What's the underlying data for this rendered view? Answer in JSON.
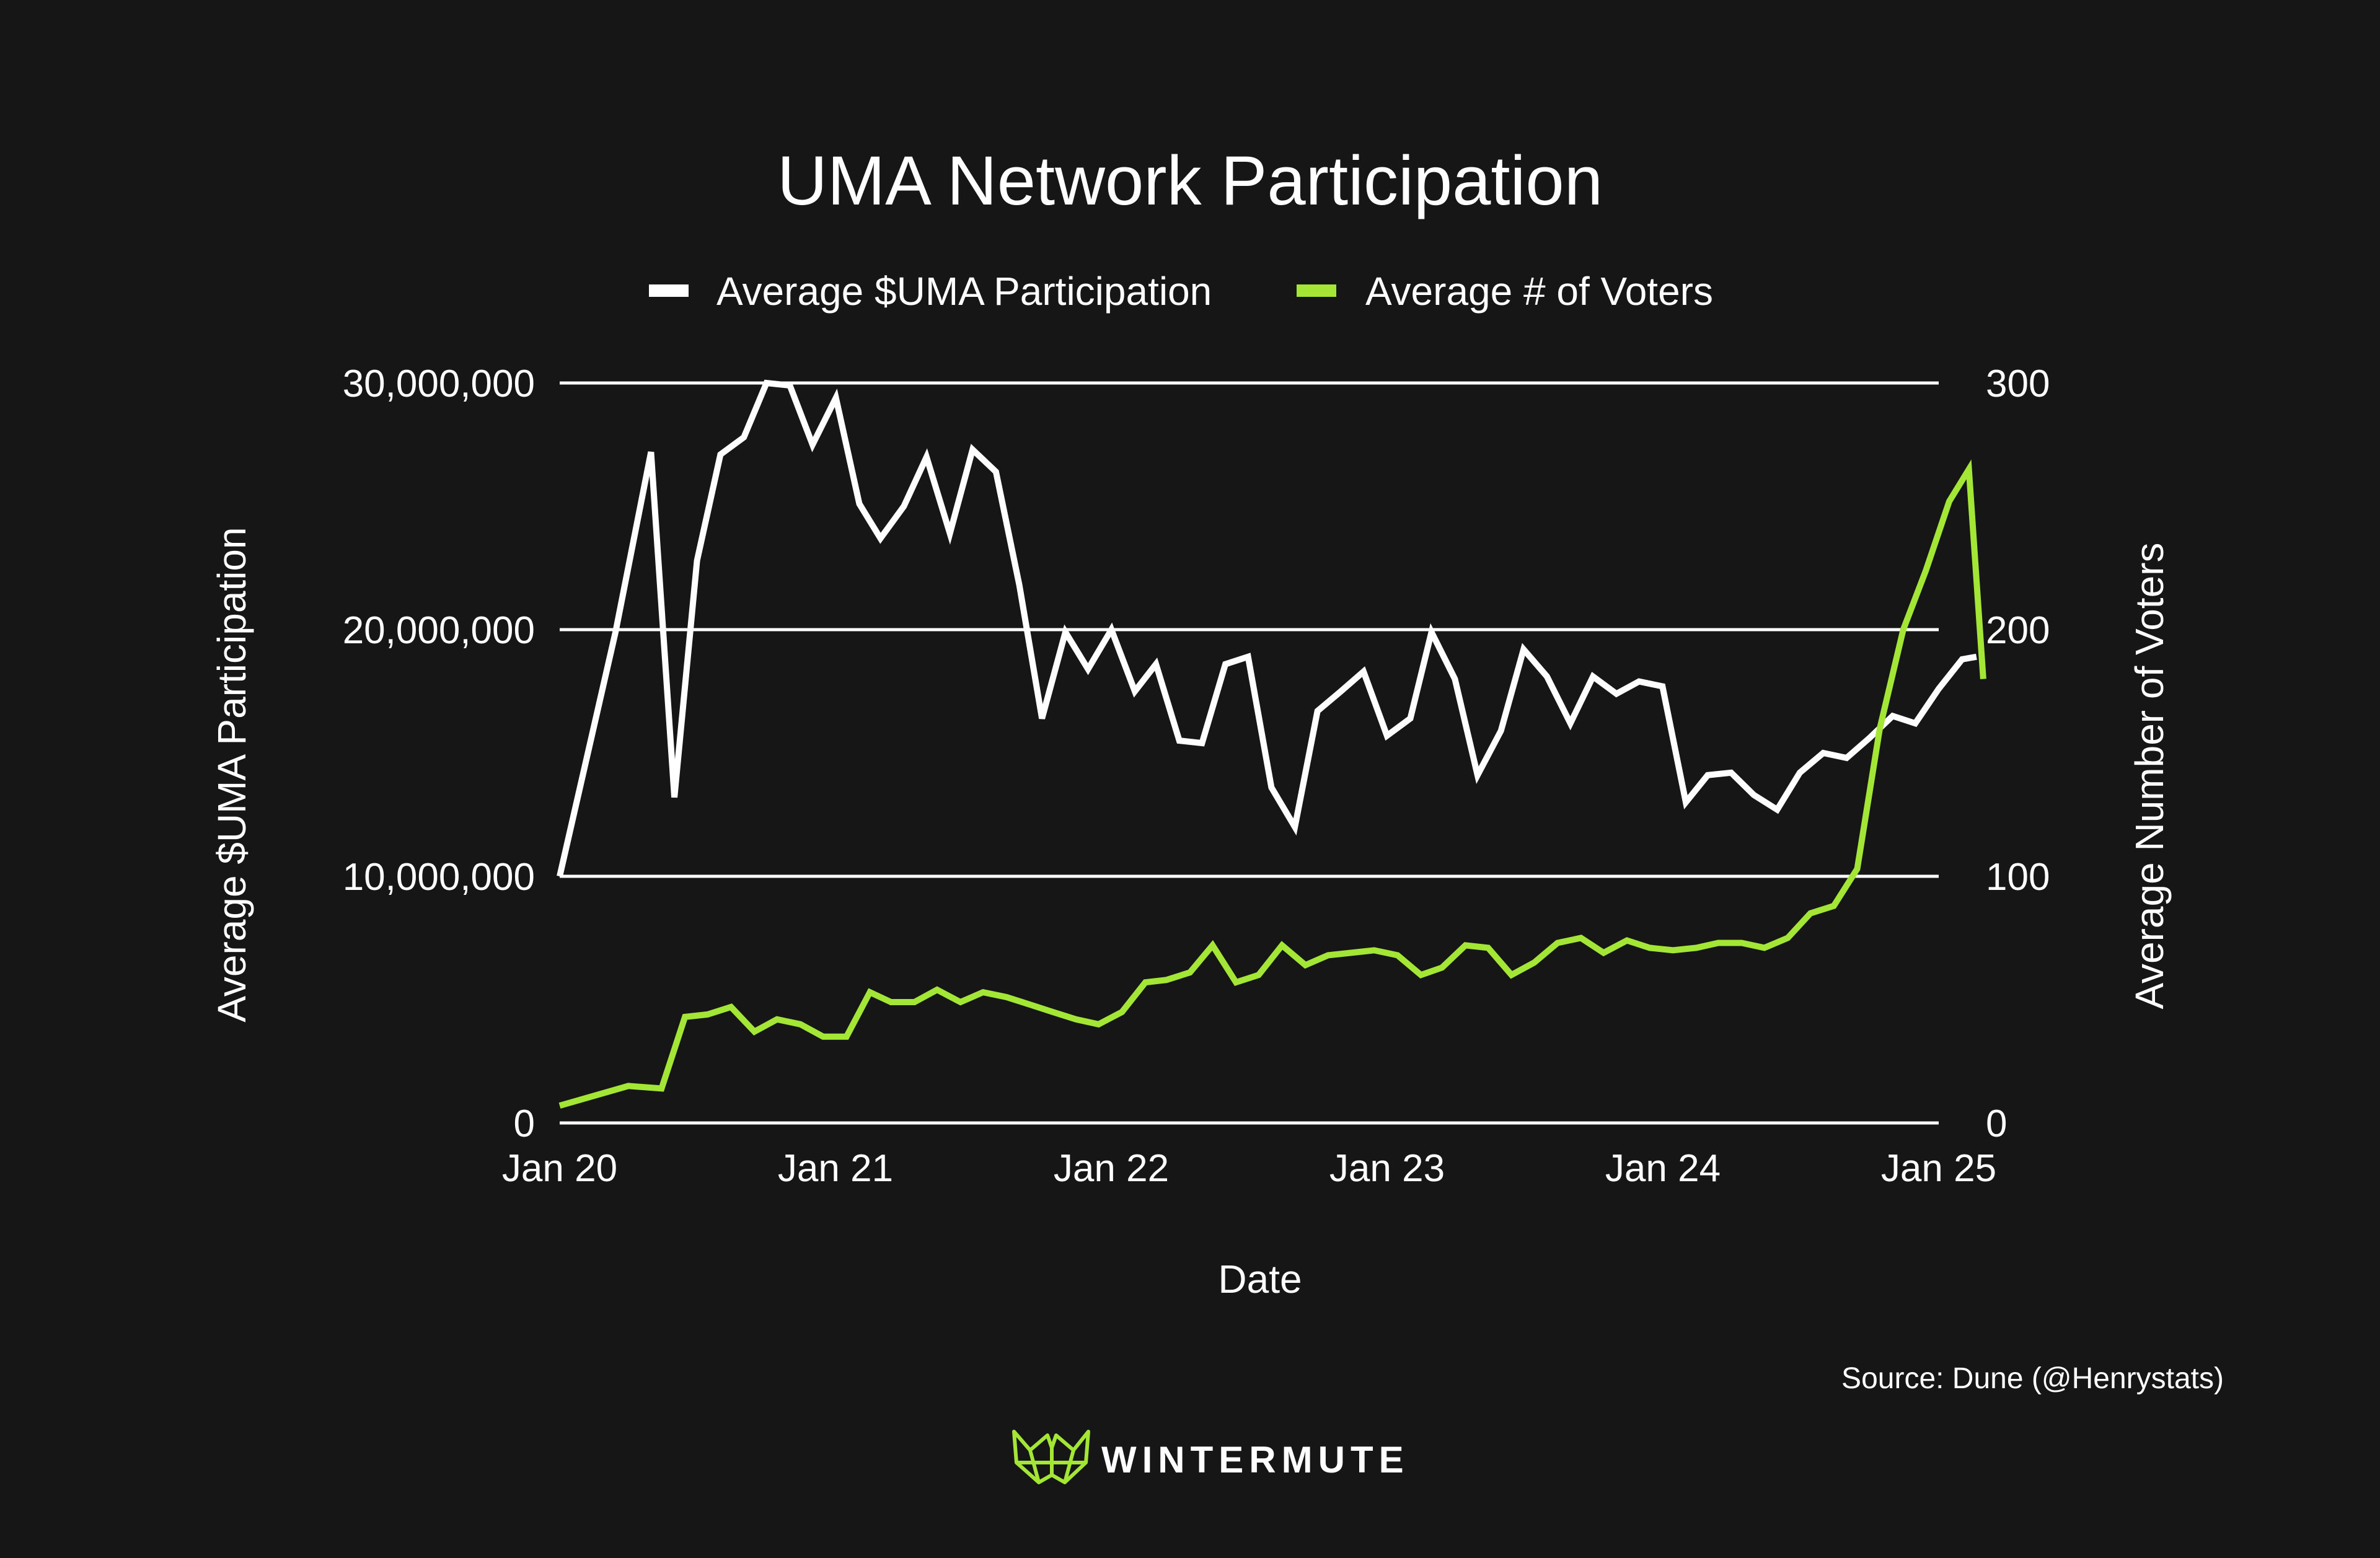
{
  "chart_data": {
    "type": "line",
    "title": "UMA Network Participation",
    "xlabel": "Date",
    "ylabel_left": "Average $UMA Participation",
    "ylabel_right": "Average Number of Voters",
    "x_ticks": [
      "Jan 20",
      "Jan 21",
      "Jan 22",
      "Jan 23",
      "Jan 24",
      "Jan 25"
    ],
    "xlim": [
      "2020-01-01",
      "2025-01-01"
    ],
    "ylim_left": [
      0,
      30000000
    ],
    "ylim_right": [
      0,
      300
    ],
    "y_ticks_left": [
      "0",
      "10,000,000",
      "20,000,000",
      "30,000,000"
    ],
    "y_ticks_right": [
      "0",
      "100",
      "200",
      "300"
    ],
    "grid": "horizontal",
    "legend_position": "top-center",
    "series": [
      {
        "name": "Average $UMA Participation",
        "axis": "left",
        "color": "#ffffff",
        "points": [
          [
            "2020-01-01",
            10000000
          ],
          [
            "2020-03-15",
            19900000
          ],
          [
            "2020-05-01",
            27200000
          ],
          [
            "2020-06-01",
            13200000
          ],
          [
            "2020-07-01",
            22800000
          ],
          [
            "2020-08-01",
            27100000
          ],
          [
            "2020-09-01",
            27800000
          ],
          [
            "2020-10-01",
            30000000
          ],
          [
            "2020-11-01",
            29900000
          ],
          [
            "2020-12-01",
            27500000
          ],
          [
            "2021-01-01",
            29400000
          ],
          [
            "2021-02-01",
            25100000
          ],
          [
            "2021-03-01",
            23700000
          ],
          [
            "2021-04-01",
            25000000
          ],
          [
            "2021-05-01",
            27000000
          ],
          [
            "2021-06-01",
            23900000
          ],
          [
            "2021-07-01",
            27300000
          ],
          [
            "2021-08-01",
            26400000
          ],
          [
            "2021-09-01",
            21800000
          ],
          [
            "2021-10-01",
            16400000
          ],
          [
            "2021-11-01",
            19900000
          ],
          [
            "2021-12-01",
            18400000
          ],
          [
            "2022-01-01",
            20000000
          ],
          [
            "2022-02-01",
            17500000
          ],
          [
            "2022-03-01",
            18600000
          ],
          [
            "2022-04-01",
            15500000
          ],
          [
            "2022-05-01",
            15400000
          ],
          [
            "2022-06-01",
            18600000
          ],
          [
            "2022-07-01",
            18900000
          ],
          [
            "2022-08-01",
            13600000
          ],
          [
            "2022-09-01",
            12000000
          ],
          [
            "2022-10-01",
            16700000
          ],
          [
            "2022-11-01",
            17500000
          ],
          [
            "2022-12-01",
            18300000
          ],
          [
            "2023-01-01",
            15700000
          ],
          [
            "2023-02-01",
            16400000
          ],
          [
            "2023-03-01",
            19900000
          ],
          [
            "2023-04-01",
            18000000
          ],
          [
            "2023-05-01",
            14100000
          ],
          [
            "2023-06-01",
            15900000
          ],
          [
            "2023-07-01",
            19200000
          ],
          [
            "2023-08-01",
            18100000
          ],
          [
            "2023-09-01",
            16200000
          ],
          [
            "2023-10-01",
            18100000
          ],
          [
            "2023-11-01",
            17400000
          ],
          [
            "2023-12-01",
            17900000
          ],
          [
            "2024-01-01",
            17700000
          ],
          [
            "2024-02-01",
            13000000
          ],
          [
            "2024-03-01",
            14100000
          ],
          [
            "2024-04-01",
            14200000
          ],
          [
            "2024-05-01",
            13300000
          ],
          [
            "2024-06-01",
            12700000
          ],
          [
            "2024-07-01",
            14200000
          ],
          [
            "2024-08-01",
            15000000
          ],
          [
            "2024-09-01",
            14800000
          ],
          [
            "2024-10-01",
            15600000
          ],
          [
            "2024-11-01",
            16500000
          ],
          [
            "2024-12-01",
            16200000
          ],
          [
            "2025-01-01",
            17600000
          ],
          [
            "2025-02-01",
            18800000
          ],
          [
            "2025-02-20",
            18900000
          ]
        ]
      },
      {
        "name": "Average # of Voters",
        "axis": "right",
        "color": "#a3e635",
        "points": [
          [
            "2020-01-01",
            7
          ],
          [
            "2020-04-01",
            15
          ],
          [
            "2020-05-15",
            14
          ],
          [
            "2020-06-15",
            43
          ],
          [
            "2020-07-15",
            44
          ],
          [
            "2020-08-15",
            47
          ],
          [
            "2020-09-15",
            37
          ],
          [
            "2020-10-15",
            42
          ],
          [
            "2020-11-15",
            40
          ],
          [
            "2020-12-15",
            35
          ],
          [
            "2021-01-15",
            35
          ],
          [
            "2021-02-15",
            53
          ],
          [
            "2021-03-15",
            49
          ],
          [
            "2021-04-15",
            49
          ],
          [
            "2021-05-15",
            54
          ],
          [
            "2021-06-15",
            49
          ],
          [
            "2021-07-15",
            53
          ],
          [
            "2021-08-15",
            51
          ],
          [
            "2021-09-15",
            48
          ],
          [
            "2021-10-15",
            45
          ],
          [
            "2021-11-15",
            42
          ],
          [
            "2021-12-15",
            40
          ],
          [
            "2022-01-15",
            45
          ],
          [
            "2022-02-15",
            57
          ],
          [
            "2022-03-15",
            58
          ],
          [
            "2022-04-15",
            61
          ],
          [
            "2022-05-15",
            72
          ],
          [
            "2022-06-15",
            57
          ],
          [
            "2022-07-15",
            60
          ],
          [
            "2022-08-15",
            72
          ],
          [
            "2022-09-15",
            64
          ],
          [
            "2022-10-15",
            68
          ],
          [
            "2022-11-15",
            69
          ],
          [
            "2022-12-15",
            70
          ],
          [
            "2023-01-15",
            68
          ],
          [
            "2023-02-15",
            60
          ],
          [
            "2023-03-15",
            63
          ],
          [
            "2023-04-15",
            72
          ],
          [
            "2023-05-15",
            71
          ],
          [
            "2023-06-15",
            60
          ],
          [
            "2023-07-15",
            65
          ],
          [
            "2023-08-15",
            73
          ],
          [
            "2023-09-15",
            75
          ],
          [
            "2023-10-15",
            69
          ],
          [
            "2023-11-15",
            74
          ],
          [
            "2023-12-15",
            71
          ],
          [
            "2024-01-15",
            70
          ],
          [
            "2024-02-15",
            71
          ],
          [
            "2024-03-15",
            73
          ],
          [
            "2024-04-15",
            73
          ],
          [
            "2024-05-15",
            71
          ],
          [
            "2024-06-15",
            75
          ],
          [
            "2024-07-15",
            85
          ],
          [
            "2024-08-15",
            88
          ],
          [
            "2024-09-15",
            103
          ],
          [
            "2024-10-15",
            160
          ],
          [
            "2024-11-15",
            200
          ],
          [
            "2024-12-15",
            224
          ],
          [
            "2025-01-15",
            252
          ],
          [
            "2025-02-10",
            265
          ],
          [
            "2025-03-01",
            180
          ]
        ]
      }
    ]
  },
  "source": "Source: Dune (@Henrystats)",
  "brand": {
    "name": "WINTERMUTE",
    "logo_icon": "wintermute-logo-icon",
    "accent_color": "#a3e635"
  }
}
